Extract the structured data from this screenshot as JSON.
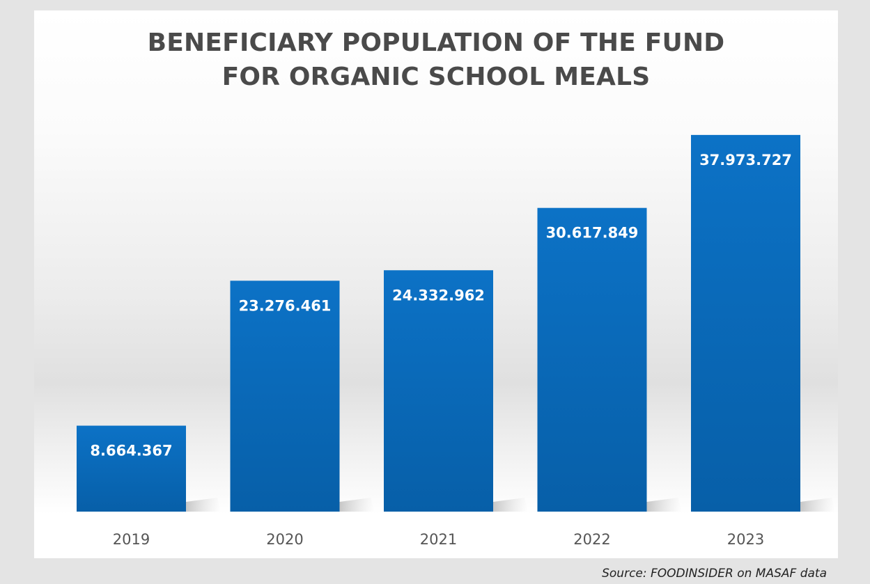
{
  "chart_data": {
    "type": "bar",
    "title": "BENEFICIARY POPULATION OF THE FUND\nFOR ORGANIC SCHOOL MEALS",
    "categories": [
      "2019",
      "2020",
      "2021",
      "2022",
      "2023"
    ],
    "values": [
      8664367,
      23276461,
      24332962,
      30617849,
      37973727
    ],
    "value_labels": [
      "8.664.367",
      "23.276.461",
      "24.332.962",
      "30.617.849",
      "37.973.727"
    ],
    "xlabel": "",
    "ylabel": "",
    "ylim": [
      0,
      40000000
    ],
    "grid": false,
    "legend": "none",
    "bar_color": "#0a6bbf"
  },
  "source": "Source: FOODINSIDER on MASAF data"
}
